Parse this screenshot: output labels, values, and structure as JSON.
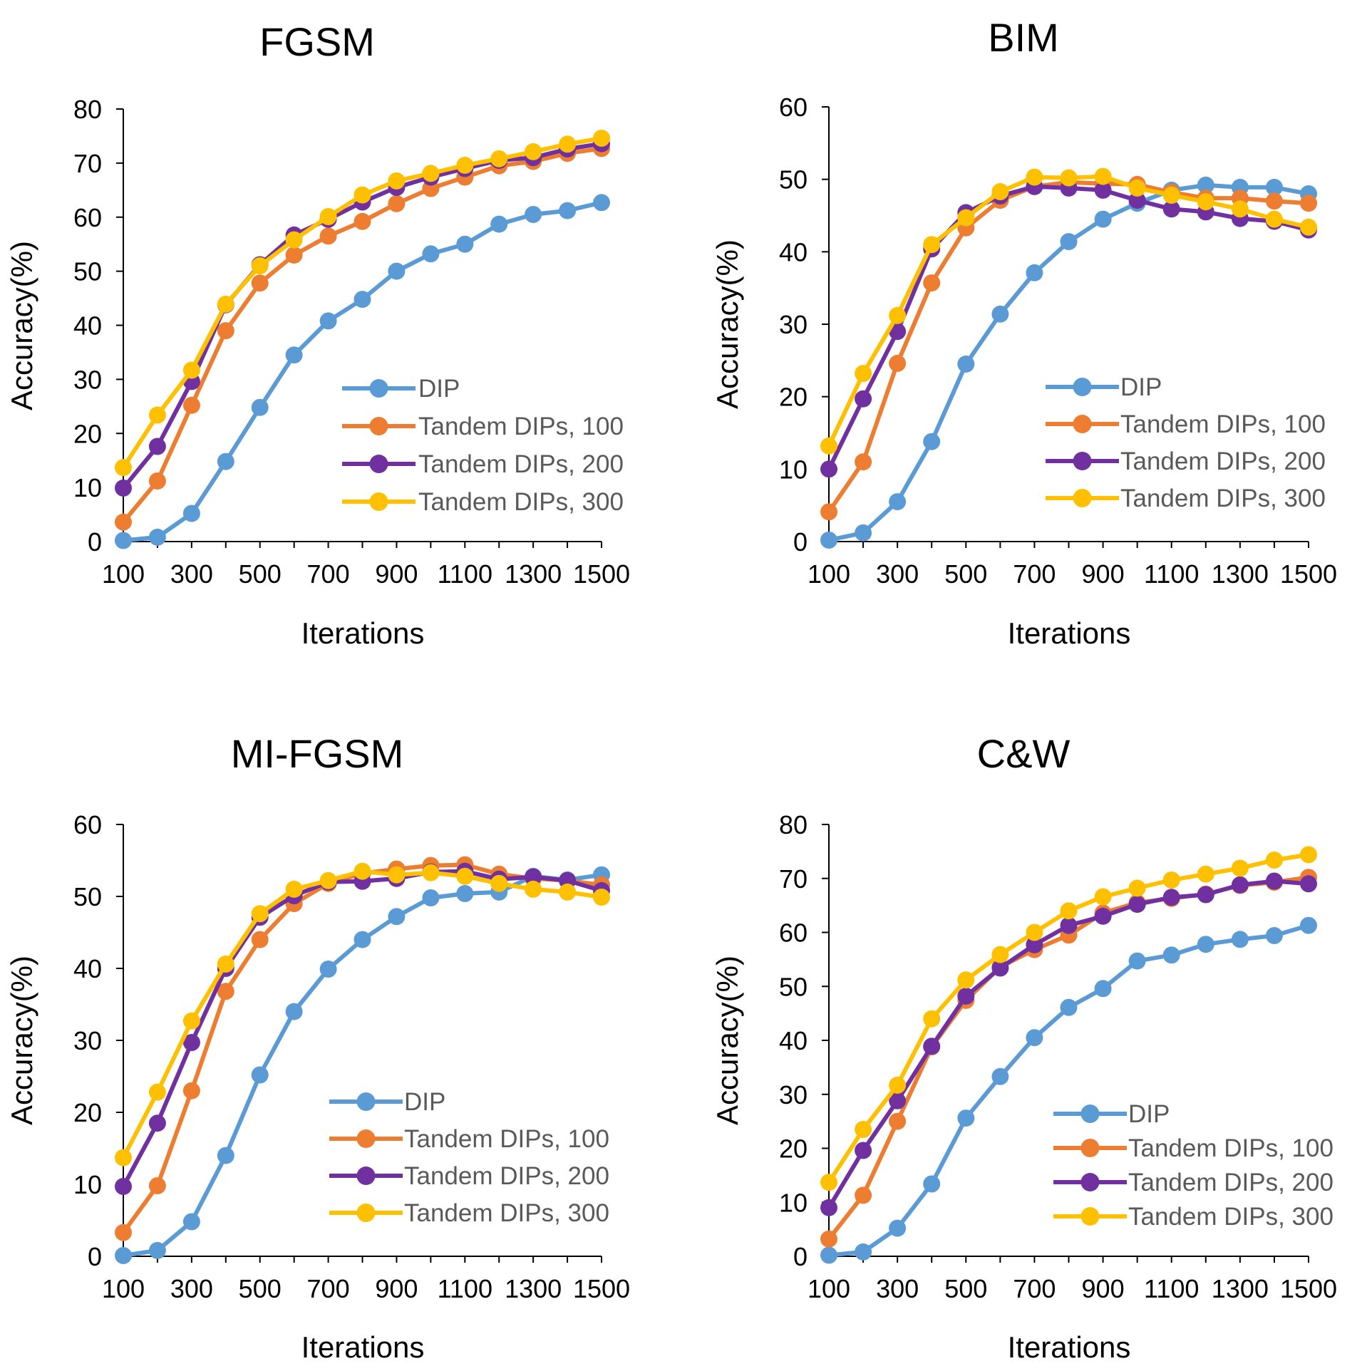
{
  "chart_data": [
    {
      "type": "line",
      "title": "FGSM",
      "xlabel": "Iterations",
      "ylabel": "Accuracy(%)",
      "ylim": [
        0,
        80
      ],
      "yticks": [
        0,
        10,
        20,
        30,
        40,
        50,
        60,
        70,
        80
      ],
      "x": [
        100,
        200,
        300,
        400,
        500,
        600,
        700,
        800,
        900,
        1000,
        1100,
        1200,
        1300,
        1400,
        1500
      ],
      "x_tick_labels": [
        "100",
        "300",
        "500",
        "700",
        "900",
        "1100",
        "1300",
        "1500"
      ],
      "legend_position": "lower-right",
      "series": [
        {
          "name": "DIP",
          "color": "#5B9BD5",
          "values": [
            0.2,
            0.8,
            5.2,
            14.8,
            24.8,
            34.5,
            40.8,
            44.8,
            50.0,
            53.2,
            55.0,
            58.7,
            60.5,
            61.2,
            62.7
          ]
        },
        {
          "name": "Tandem DIPs, 100",
          "color": "#ED7D31",
          "values": [
            3.6,
            11.2,
            25.2,
            39.0,
            47.8,
            53.0,
            56.5,
            59.2,
            62.5,
            65.3,
            67.4,
            69.5,
            70.3,
            71.8,
            72.7
          ]
        },
        {
          "name": "Tandem DIPs, 200",
          "color": "#7030A0",
          "values": [
            9.9,
            17.6,
            29.6,
            43.8,
            51.2,
            56.7,
            59.6,
            62.8,
            65.5,
            67.4,
            69.0,
            70.5,
            71.0,
            72.6,
            73.6
          ]
        },
        {
          "name": "Tandem DIPs, 300",
          "color": "#FFC000",
          "values": [
            13.7,
            23.4,
            31.7,
            43.9,
            51.0,
            55.8,
            60.1,
            64.1,
            66.7,
            68.1,
            69.6,
            70.8,
            72.1,
            73.5,
            74.6
          ]
        }
      ]
    },
    {
      "type": "line",
      "title": "BIM",
      "xlabel": "Iterations",
      "ylabel": "Accuracy(%)",
      "ylim": [
        0,
        60
      ],
      "yticks": [
        0,
        10,
        20,
        30,
        40,
        50,
        60
      ],
      "x": [
        100,
        200,
        300,
        400,
        500,
        600,
        700,
        800,
        900,
        1000,
        1100,
        1200,
        1300,
        1400,
        1500
      ],
      "x_tick_labels": [
        "100",
        "300",
        "500",
        "700",
        "900",
        "1100",
        "1300",
        "1500"
      ],
      "legend_position": "lower-right",
      "series": [
        {
          "name": "DIP",
          "color": "#5B9BD5",
          "values": [
            0.2,
            1.2,
            5.5,
            13.8,
            24.5,
            31.4,
            37.1,
            41.4,
            44.5,
            46.7,
            48.5,
            49.2,
            48.9,
            48.9,
            48.0
          ]
        },
        {
          "name": "Tandem DIPs, 100",
          "color": "#ED7D31",
          "values": [
            4.1,
            11.0,
            24.6,
            35.7,
            43.3,
            47.1,
            49.0,
            49.6,
            49.4,
            49.3,
            48.2,
            47.4,
            47.4,
            47.0,
            46.7
          ]
        },
        {
          "name": "Tandem DIPs, 200",
          "color": "#7030A0",
          "values": [
            10.0,
            19.7,
            29.0,
            40.4,
            45.4,
            47.7,
            49.0,
            48.8,
            48.5,
            47.1,
            45.9,
            45.5,
            44.6,
            44.2,
            43.0
          ]
        },
        {
          "name": "Tandem DIPs, 300",
          "color": "#FFC000",
          "values": [
            13.2,
            23.2,
            31.2,
            41.0,
            44.7,
            48.3,
            50.3,
            50.2,
            50.4,
            48.8,
            47.8,
            46.9,
            45.9,
            44.5,
            43.4
          ]
        }
      ]
    },
    {
      "type": "line",
      "title": "MI-FGSM",
      "xlabel": "Iterations",
      "ylabel": "Accuracy(%)",
      "ylim": [
        0,
        60
      ],
      "yticks": [
        0,
        10,
        20,
        30,
        40,
        50,
        60
      ],
      "x": [
        100,
        200,
        300,
        400,
        500,
        600,
        700,
        800,
        900,
        1000,
        1100,
        1200,
        1300,
        1400,
        1500
      ],
      "x_tick_labels": [
        "100",
        "300",
        "500",
        "700",
        "900",
        "1100",
        "1300",
        "1500"
      ],
      "legend_position": "lower-right",
      "series": [
        {
          "name": "DIP",
          "color": "#5B9BD5",
          "values": [
            0.1,
            0.8,
            4.8,
            14.0,
            25.2,
            34.0,
            39.9,
            44.0,
            47.2,
            49.8,
            50.4,
            50.6,
            52.8,
            52.3,
            53.0
          ]
        },
        {
          "name": "Tandem DIPs, 100",
          "color": "#ED7D31",
          "values": [
            3.3,
            9.8,
            23.0,
            36.8,
            44.0,
            49.0,
            51.8,
            53.2,
            53.8,
            54.3,
            54.4,
            53.1,
            52.5,
            52.2,
            51.6
          ]
        },
        {
          "name": "Tandem DIPs, 200",
          "color": "#7030A0",
          "values": [
            9.7,
            18.5,
            29.7,
            40.0,
            47.1,
            50.1,
            52.0,
            52.1,
            52.5,
            53.4,
            53.5,
            52.4,
            52.7,
            52.2,
            50.8
          ]
        },
        {
          "name": "Tandem DIPs, 300",
          "color": "#FFC000",
          "values": [
            13.7,
            22.8,
            32.7,
            40.6,
            47.6,
            51.0,
            52.2,
            53.5,
            53.0,
            53.3,
            52.8,
            51.8,
            51.0,
            50.6,
            49.9
          ]
        }
      ]
    },
    {
      "type": "line",
      "title": "C&W",
      "xlabel": "Iterations",
      "ylabel": "Accuracy(%)",
      "ylim": [
        0,
        80
      ],
      "yticks": [
        0,
        10,
        20,
        30,
        40,
        50,
        60,
        70,
        80
      ],
      "x": [
        100,
        200,
        300,
        400,
        500,
        600,
        700,
        800,
        900,
        1000,
        1100,
        1200,
        1300,
        1400,
        1500
      ],
      "x_tick_labels": [
        "100",
        "300",
        "500",
        "700",
        "900",
        "1100",
        "1300",
        "1500"
      ],
      "legend_position": "lower-right",
      "series": [
        {
          "name": "DIP",
          "color": "#5B9BD5",
          "values": [
            0.2,
            0.8,
            5.2,
            13.4,
            25.6,
            33.3,
            40.5,
            46.1,
            49.6,
            54.7,
            55.8,
            57.8,
            58.7,
            59.4,
            61.3
          ]
        },
        {
          "name": "Tandem DIPs, 100",
          "color": "#ED7D31",
          "values": [
            3.2,
            11.3,
            25.0,
            38.8,
            47.4,
            53.6,
            56.8,
            59.5,
            63.6,
            65.5,
            66.3,
            67.1,
            68.7,
            69.3,
            70.2
          ]
        },
        {
          "name": "Tandem DIPs, 200",
          "color": "#7030A0",
          "values": [
            9.0,
            19.6,
            28.8,
            38.9,
            48.2,
            53.4,
            57.7,
            61.3,
            63.0,
            65.2,
            66.5,
            67.0,
            68.8,
            69.5,
            69.0
          ]
        },
        {
          "name": "Tandem DIPs, 300",
          "color": "#FFC000",
          "values": [
            13.7,
            23.5,
            31.7,
            44.0,
            51.2,
            55.9,
            60.0,
            64.0,
            66.6,
            68.2,
            69.7,
            70.8,
            71.9,
            73.4,
            74.4
          ]
        }
      ]
    }
  ]
}
